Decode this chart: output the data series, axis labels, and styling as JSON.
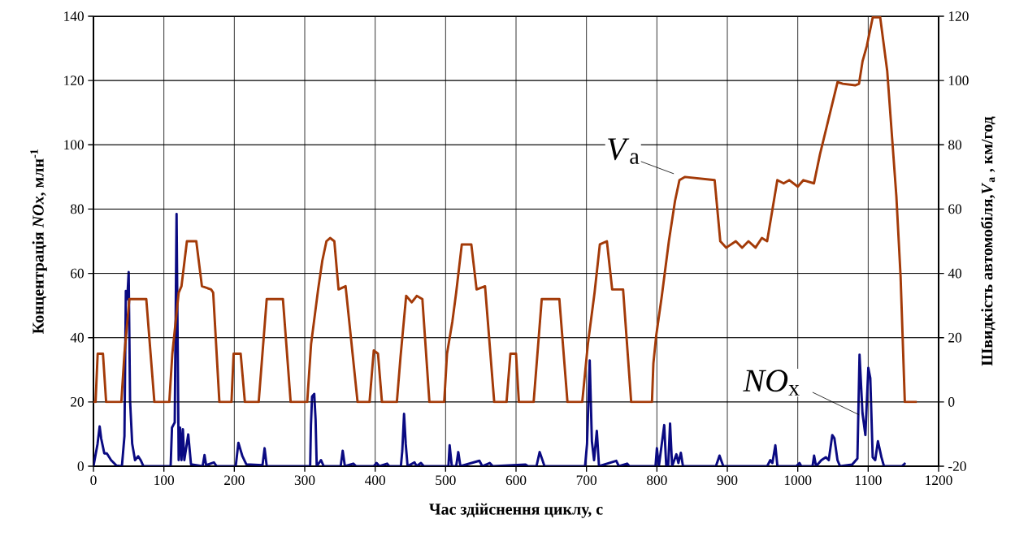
{
  "chart_data": {
    "type": "line",
    "xlabel": "Час здійснення циклу, с",
    "ylabel": "Концентрація *NOx*, млн$^{-1}$",
    "y2label": "Швидкість автомобіля,*V*$_{а}$ , км/год",
    "xlim": [
      0,
      1200
    ],
    "xticks": [
      0,
      100,
      200,
      300,
      400,
      500,
      600,
      700,
      800,
      900,
      1000,
      1100,
      1200
    ],
    "ylim": [
      0,
      140
    ],
    "yticks": [
      0,
      20,
      40,
      60,
      80,
      100,
      120,
      140
    ],
    "y2lim": [
      -20,
      120
    ],
    "y2ticks": [
      -20,
      0,
      20,
      40,
      60,
      80,
      100,
      120
    ],
    "grid": true,
    "series": [
      {
        "name": "*V*$_{а}$",
        "color": "#a33a08",
        "axis": "y2",
        "x": [
          0,
          3,
          6,
          13.5,
          18,
          39.6,
          44,
          51,
          75,
          86.5,
          107.7,
          112,
          121,
          125,
          132.7,
          146,
          154,
          167,
          170,
          178.8,
          196,
          199,
          209,
          215,
          234.6,
          246,
          269,
          280,
          303.5,
          309,
          319,
          325,
          330.8,
          336,
          342,
          348,
          358,
          375,
          392,
          398,
          404,
          409.6,
          430.8,
          436,
          444,
          452,
          459,
          467,
          477,
          498,
          502,
          509.6,
          515,
          523,
          536.5,
          544,
          556,
          569,
          586.5,
          592,
          600,
          604,
          625,
          636.5,
          661.5,
          673,
          694,
          702,
          711.5,
          719,
          729,
          736.5,
          752,
          763.5,
          793,
          795,
          799,
          807,
          817,
          825.7,
          832,
          840,
          882,
          890,
          898.5,
          912,
          921,
          930,
          940,
          949,
          956.5,
          971,
          980,
          988,
          1000,
          1008,
          1023,
          1031.5,
          1056.5,
          1064,
          1081.5,
          1087,
          1092,
          1098,
          1106.5,
          1117,
          1127,
          1140,
          1146,
          1152,
          1169
        ],
        "values": [
          0,
          0,
          15,
          15,
          0,
          0,
          15,
          32,
          32,
          0,
          0,
          15,
          34,
          36,
          50,
          50,
          36,
          35,
          34,
          0,
          0,
          15,
          15,
          0,
          0,
          32,
          32,
          0,
          0,
          18,
          35,
          44,
          50,
          51,
          50,
          35,
          36,
          0,
          0,
          16,
          15,
          0,
          0,
          14,
          33,
          31,
          33,
          32,
          0,
          0,
          15,
          25,
          34,
          49,
          49,
          35,
          36,
          0,
          0,
          15,
          15,
          0,
          0,
          32,
          32,
          0,
          0,
          18,
          34,
          49,
          50,
          35,
          35,
          0,
          0,
          12,
          20.6,
          33,
          50,
          62.5,
          69,
          70,
          69,
          50,
          48,
          50,
          48,
          50,
          48,
          51,
          50,
          69,
          68,
          69,
          67,
          69,
          68,
          77,
          99.5,
          99,
          98.5,
          99,
          106,
          110.7,
          119.7,
          119.7,
          103,
          64,
          39,
          0,
          0
        ]
      },
      {
        "name": "*NO*$_{x}$",
        "color": "#0a0a82",
        "x": [
          0,
          5.8,
          8.8,
          11,
          15.4,
          19,
          25,
          32.7,
          40.4,
          44,
          46,
          48,
          50,
          52,
          55,
          59,
          63.5,
          67,
          71,
          109.6,
          111.5,
          115.4,
          118,
          121,
          123,
          125,
          127,
          129,
          134.6,
          138.5,
          155,
          157.7,
          160,
          171,
          175,
          202,
          205.8,
          211.5,
          217,
          240,
          243,
          246,
          307.7,
          308.8,
          310.4,
          313.5,
          315.4,
          317,
          323,
          327,
          351,
          353.9,
          357,
          369,
          373,
          398,
          402,
          406,
          417,
          420,
          436.5,
          438.5,
          441,
          443.4,
          446,
          455.8,
          459,
          465,
          469,
          504,
          505.7,
          508.8,
          515,
          518,
          521,
          548,
          552,
          562.7,
          567,
          613.5,
          617,
          629,
          633.5,
          637.5,
          640.4,
          698,
          700.8,
          704.6,
          707.7,
          710.8,
          714.7,
          717.8,
          742.3,
          746,
          757.7,
          761,
          798,
          800,
          802.8,
          810.4,
          813.3,
          816,
          818.7,
          821.6,
          827.7,
          830.5,
          834,
          837,
          883.8,
          888.9,
          894.3,
          956.6,
          961,
          964,
          968.2,
          971.1,
          998,
          1002.4,
          1005,
          1021,
          1023.2,
          1026,
          1033.6,
          1039.8,
          1044,
          1049,
          1052,
          1056.4,
          1060,
          1077.2,
          1084.7,
          1087.7,
          1091.9,
          1096,
          1100.2,
          1103,
          1106.4,
          1110,
          1113.8,
          1118.8,
          1122.4,
          1147.9,
          1152.9
        ],
        "values": [
          0,
          6.9,
          12.4,
          8.6,
          4,
          4,
          1.9,
          0.2,
          0,
          9.4,
          54.5,
          52,
          60.4,
          20.4,
          7,
          1.9,
          3.1,
          1.9,
          0,
          0,
          12,
          13.6,
          78.5,
          1.9,
          12,
          1.9,
          11.5,
          1.9,
          9.9,
          0.6,
          0,
          3.5,
          0.3,
          1.2,
          0,
          0,
          7.3,
          3.1,
          0.6,
          0.3,
          5.6,
          0,
          0,
          12.8,
          21.7,
          22.5,
          14.5,
          0,
          1.9,
          0,
          0,
          4.8,
          0,
          0.8,
          0,
          0,
          1,
          0,
          0.8,
          0,
          0,
          4.8,
          16.3,
          6.9,
          0,
          1.2,
          0,
          1,
          0,
          0,
          6.5,
          0,
          0,
          4.4,
          0,
          1.7,
          0,
          1,
          0,
          0.5,
          0,
          0,
          4.4,
          1.9,
          0,
          0,
          6.9,
          32.9,
          7.7,
          1.9,
          11,
          0,
          1.7,
          0,
          0.8,
          0,
          0,
          5.6,
          0,
          12.8,
          0,
          0,
          13.3,
          0,
          3.7,
          1,
          4.2,
          0,
          0,
          3.3,
          0,
          0,
          1.9,
          1,
          6.5,
          0,
          0,
          1,
          0,
          0,
          3.3,
          0,
          1.9,
          2.8,
          1.9,
          9.7,
          8.7,
          1.9,
          0,
          0.5,
          2.4,
          34.7,
          16.5,
          9.7,
          30.6,
          27.4,
          2.8,
          1.9,
          7.8,
          2.8,
          0,
          0,
          1
        ]
      }
    ]
  }
}
